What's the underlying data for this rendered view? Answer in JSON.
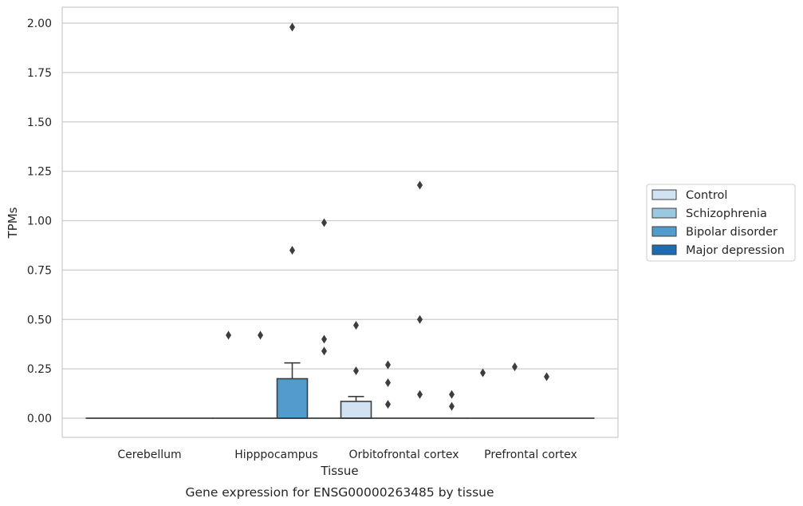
{
  "chart_data": {
    "type": "box",
    "caption": "Gene expression for ENSG00000263485 by tissue",
    "xlabel": "Tissue",
    "ylabel": "TPMs",
    "ylim": [
      -0.1,
      2.08
    ],
    "yticks": [
      "0.00",
      "0.25",
      "0.50",
      "0.75",
      "1.00",
      "1.25",
      "1.50",
      "1.75",
      "2.00"
    ],
    "grid": true,
    "legend_position": "right",
    "categories": [
      "Cerebellum",
      "Hipppocampus",
      "Orbitofrontal cortex",
      "Prefrontal cortex"
    ],
    "groups": [
      {
        "name": "Control",
        "color": "#d1e2f2"
      },
      {
        "name": "Schizophrenia",
        "color": "#9ac8e0"
      },
      {
        "name": "Bipolar disorder",
        "color": "#519ccc"
      },
      {
        "name": "Major depression",
        "color": "#1d6cb1"
      }
    ],
    "boxes": [
      {
        "category": 0,
        "group": 0,
        "q1": 0,
        "median": 0,
        "q3": 0,
        "whisker_low": 0,
        "whisker_high": 0
      },
      {
        "category": 0,
        "group": 1,
        "q1": 0,
        "median": 0,
        "q3": 0,
        "whisker_low": 0,
        "whisker_high": 0
      },
      {
        "category": 0,
        "group": 2,
        "q1": 0,
        "median": 0,
        "q3": 0,
        "whisker_low": 0,
        "whisker_high": 0
      },
      {
        "category": 0,
        "group": 3,
        "q1": 0,
        "median": 0,
        "q3": 0,
        "whisker_low": 0,
        "whisker_high": 0
      },
      {
        "category": 1,
        "group": 0,
        "q1": 0,
        "median": 0,
        "q3": 0,
        "whisker_low": 0,
        "whisker_high": 0
      },
      {
        "category": 1,
        "group": 1,
        "q1": 0,
        "median": 0,
        "q3": 0,
        "whisker_low": 0,
        "whisker_high": 0
      },
      {
        "category": 1,
        "group": 2,
        "q1": 0,
        "median": 0,
        "q3": 0.2,
        "whisker_low": 0,
        "whisker_high": 0.28
      },
      {
        "category": 1,
        "group": 3,
        "q1": 0,
        "median": 0,
        "q3": 0,
        "whisker_low": 0,
        "whisker_high": 0
      },
      {
        "category": 2,
        "group": 0,
        "q1": 0,
        "median": 0,
        "q3": 0.085,
        "whisker_low": 0,
        "whisker_high": 0.11
      },
      {
        "category": 2,
        "group": 1,
        "q1": 0,
        "median": 0,
        "q3": 0,
        "whisker_low": 0,
        "whisker_high": 0
      },
      {
        "category": 2,
        "group": 2,
        "q1": 0,
        "median": 0,
        "q3": 0,
        "whisker_low": 0,
        "whisker_high": 0
      },
      {
        "category": 2,
        "group": 3,
        "q1": 0,
        "median": 0,
        "q3": 0,
        "whisker_low": 0,
        "whisker_high": 0
      },
      {
        "category": 3,
        "group": 0,
        "q1": 0,
        "median": 0,
        "q3": 0,
        "whisker_low": 0,
        "whisker_high": 0
      },
      {
        "category": 3,
        "group": 1,
        "q1": 0,
        "median": 0,
        "q3": 0,
        "whisker_low": 0,
        "whisker_high": 0
      },
      {
        "category": 3,
        "group": 2,
        "q1": 0,
        "median": 0,
        "q3": 0,
        "whisker_low": 0,
        "whisker_high": 0
      },
      {
        "category": 3,
        "group": 3,
        "q1": 0,
        "median": 0,
        "q3": 0,
        "whisker_low": 0,
        "whisker_high": 0
      }
    ],
    "outliers": [
      {
        "category": 1,
        "group": 0,
        "values": [
          0.42
        ]
      },
      {
        "category": 1,
        "group": 1,
        "values": [
          0.42
        ]
      },
      {
        "category": 1,
        "group": 2,
        "values": [
          1.98,
          0.85
        ]
      },
      {
        "category": 1,
        "group": 3,
        "values": [
          0.99,
          0.4,
          0.34
        ]
      },
      {
        "category": 2,
        "group": 0,
        "values": [
          0.47,
          0.24
        ]
      },
      {
        "category": 2,
        "group": 1,
        "values": [
          0.27,
          0.18,
          0.07
        ]
      },
      {
        "category": 2,
        "group": 2,
        "values": [
          1.18,
          0.5,
          0.12
        ]
      },
      {
        "category": 2,
        "group": 3,
        "values": [
          0.12,
          0.06
        ]
      },
      {
        "category": 3,
        "group": 0,
        "values": [
          0.23
        ]
      },
      {
        "category": 3,
        "group": 1,
        "values": [
          0.26
        ]
      },
      {
        "category": 3,
        "group": 2,
        "values": [
          0.21
        ]
      }
    ]
  }
}
